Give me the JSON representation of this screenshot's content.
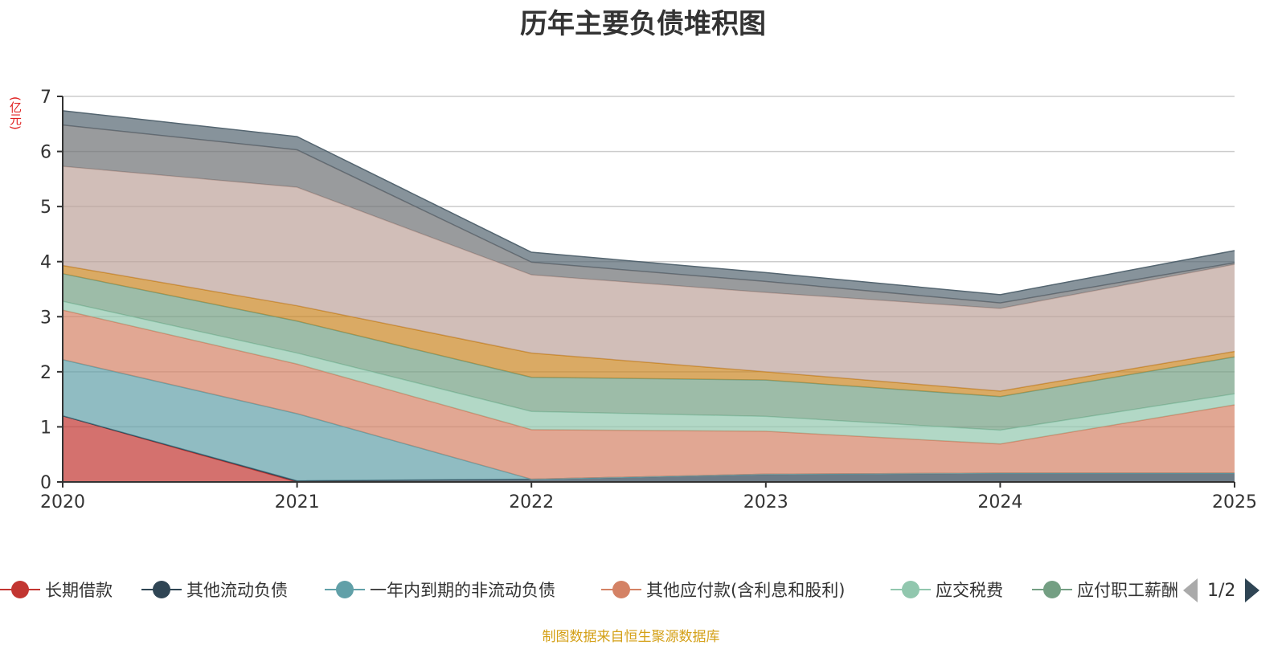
{
  "chart_data": {
    "type": "area",
    "stacked": true,
    "title": "历年主要负债堆积图",
    "ylabel": "(亿元)",
    "xlabel": "",
    "x": [
      "2020",
      "2021",
      "2022",
      "2023",
      "2024",
      "2025"
    ],
    "ylim": [
      0,
      7
    ],
    "yticks": [
      0,
      1,
      2,
      3,
      4,
      5,
      6,
      7
    ],
    "grid": true,
    "legend_position": "bottom",
    "series": [
      {
        "name": "长期借款",
        "color": "#c23531",
        "values": [
          1.2,
          0.0,
          0.0,
          0.0,
          0.0,
          0.0
        ]
      },
      {
        "name": "其他流动负债",
        "color": "#2f4554",
        "values": [
          0.0,
          0.02,
          0.05,
          0.14,
          0.16,
          0.16
        ]
      },
      {
        "name": "一年内到期的非流动负债",
        "color": "#61a0a8",
        "values": [
          1.02,
          1.22,
          0.0,
          0.0,
          0.0,
          0.0
        ]
      },
      {
        "name": "其他应付款(含利息和股利)",
        "color": "#d48265",
        "values": [
          0.9,
          0.9,
          0.9,
          0.78,
          0.53,
          1.24
        ]
      },
      {
        "name": "应交税费",
        "color": "#91c7ae",
        "values": [
          0.16,
          0.2,
          0.33,
          0.27,
          0.25,
          0.2
        ]
      },
      {
        "name": "应付职工薪酬",
        "color": "#749f83",
        "values": [
          0.5,
          0.58,
          0.62,
          0.66,
          0.61,
          0.67
        ]
      },
      {
        "name": "",
        "color": "#ca8622",
        "values": [
          0.15,
          0.28,
          0.44,
          0.15,
          0.1,
          0.1
        ]
      },
      {
        "name": "",
        "color": "#bda29a",
        "values": [
          1.8,
          2.15,
          1.42,
          1.44,
          1.5,
          1.58
        ]
      },
      {
        "name": "",
        "color": "#6e7074",
        "values": [
          0.75,
          0.68,
          0.23,
          0.2,
          0.1,
          0.03
        ]
      },
      {
        "name": "",
        "color": "#546570",
        "values": [
          0.26,
          0.24,
          0.18,
          0.16,
          0.15,
          0.22
        ]
      }
    ]
  },
  "legend": {
    "page_text": "1/2",
    "visible_count": 6
  },
  "source_note": "制图数据来自恒生聚源数据库"
}
